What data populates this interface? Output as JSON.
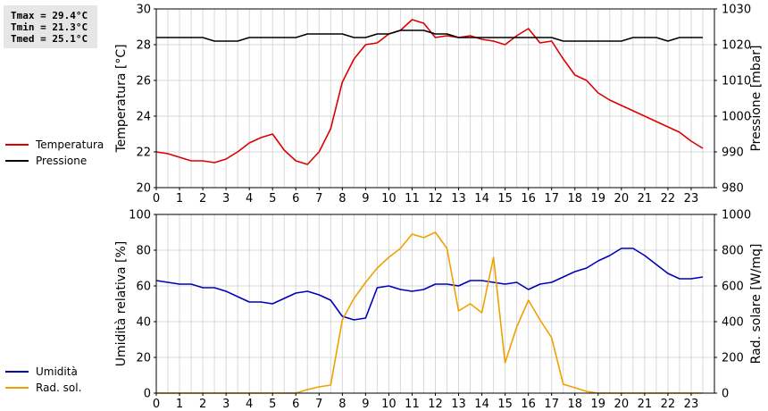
{
  "stats": {
    "tmax": "Tmax = 29.4°C",
    "tmin": "Tmin = 21.3°C",
    "tmed": "Tmed = 25.1°C"
  },
  "legend_top": [
    {
      "label": "Temperatura",
      "color": "#dd0000"
    },
    {
      "label": "Pressione",
      "color": "#000000"
    }
  ],
  "legend_bottom": [
    {
      "label": "Umidità",
      "color": "#0000bb"
    },
    {
      "label": "Rad. sol.",
      "color": "#f0a000"
    }
  ],
  "chart_data": [
    {
      "type": "line",
      "xlabel": "",
      "ylabel": "Temperatura [°C]",
      "y2label": "Pressione [mbar]",
      "xlim": [
        0,
        24
      ],
      "ylim": [
        20,
        30
      ],
      "y2lim": [
        980,
        1030
      ],
      "xticks": [
        0,
        1,
        2,
        3,
        4,
        5,
        6,
        7,
        8,
        9,
        10,
        11,
        12,
        13,
        14,
        15,
        16,
        17,
        18,
        19,
        20,
        21,
        22,
        23
      ],
      "yticks": [
        20,
        22,
        24,
        26,
        28,
        30
      ],
      "y2ticks": [
        980,
        990,
        1000,
        1010,
        1020,
        1030
      ],
      "grid": true,
      "series": [
        {
          "name": "Temperatura",
          "axis": "left",
          "color": "#dd0000",
          "x": [
            0,
            0.5,
            1,
            1.5,
            2,
            2.5,
            3,
            3.5,
            4,
            4.5,
            5,
            5.5,
            6,
            6.5,
            7,
            7.5,
            8,
            8.5,
            9,
            9.5,
            10,
            10.5,
            11,
            11.5,
            12,
            12.5,
            13,
            13.5,
            14,
            14.5,
            15,
            15.5,
            16,
            16.5,
            17,
            17.5,
            18,
            18.5,
            19,
            19.5,
            20,
            20.5,
            21,
            21.5,
            22,
            22.5,
            23,
            23.5
          ],
          "values": [
            22.0,
            21.9,
            21.7,
            21.5,
            21.5,
            21.4,
            21.6,
            22.0,
            22.5,
            22.8,
            23.0,
            22.1,
            21.5,
            21.3,
            22.0,
            23.3,
            25.9,
            27.2,
            28.0,
            28.1,
            28.6,
            28.8,
            29.4,
            29.2,
            28.4,
            28.5,
            28.4,
            28.5,
            28.3,
            28.2,
            28.0,
            28.5,
            28.9,
            28.1,
            28.2,
            27.2,
            26.3,
            26.0,
            25.3,
            24.9,
            24.6,
            24.3,
            24.0,
            23.7,
            23.4,
            23.1,
            22.6,
            22.2
          ]
        },
        {
          "name": "Pressione",
          "axis": "right",
          "color": "#000000",
          "x": [
            0,
            0.5,
            1,
            1.5,
            2,
            2.5,
            3,
            3.5,
            4,
            4.5,
            5,
            5.5,
            6,
            6.5,
            7,
            7.5,
            8,
            8.5,
            9,
            9.5,
            10,
            10.5,
            11,
            11.5,
            12,
            12.5,
            13,
            13.5,
            14,
            14.5,
            15,
            15.5,
            16,
            16.5,
            17,
            17.5,
            18,
            18.5,
            19,
            19.5,
            20,
            20.5,
            21,
            21.5,
            22,
            22.5,
            23,
            23.5
          ],
          "values": [
            1022,
            1022,
            1022,
            1022,
            1022,
            1021,
            1021,
            1021,
            1022,
            1022,
            1022,
            1022,
            1022,
            1023,
            1023,
            1023,
            1023,
            1022,
            1022,
            1023,
            1023,
            1024,
            1024,
            1024,
            1023,
            1023,
            1022,
            1022,
            1022,
            1022,
            1022,
            1022,
            1022,
            1022,
            1022,
            1021,
            1021,
            1021,
            1021,
            1021,
            1021,
            1022,
            1022,
            1022,
            1021,
            1022,
            1022,
            1022
          ]
        }
      ]
    },
    {
      "type": "line",
      "xlabel": "",
      "ylabel": "Umidità relativa [%]",
      "y2label": "Rad. solare [W/mq]",
      "xlim": [
        0,
        24
      ],
      "ylim": [
        0,
        100
      ],
      "y2lim": [
        0,
        1000
      ],
      "xticks": [
        0,
        1,
        2,
        3,
        4,
        5,
        6,
        7,
        8,
        9,
        10,
        11,
        12,
        13,
        14,
        15,
        16,
        17,
        18,
        19,
        20,
        21,
        22,
        23
      ],
      "yticks": [
        0,
        20,
        40,
        60,
        80,
        100
      ],
      "y2ticks": [
        0,
        200,
        400,
        600,
        800,
        1000
      ],
      "grid": true,
      "series": [
        {
          "name": "Umidità",
          "axis": "left",
          "color": "#0000bb",
          "x": [
            0,
            0.5,
            1,
            1.5,
            2,
            2.5,
            3,
            3.5,
            4,
            4.5,
            5,
            5.5,
            6,
            6.5,
            7,
            7.5,
            8,
            8.5,
            9,
            9.5,
            10,
            10.5,
            11,
            11.5,
            12,
            12.5,
            13,
            13.5,
            14,
            14.5,
            15,
            15.5,
            16,
            16.5,
            17,
            17.5,
            18,
            18.5,
            19,
            19.5,
            20,
            20.5,
            21,
            21.5,
            22,
            22.5,
            23,
            23.5
          ],
          "values": [
            63,
            62,
            61,
            61,
            59,
            59,
            57,
            54,
            51,
            51,
            50,
            53,
            56,
            57,
            55,
            52,
            43,
            41,
            42,
            59,
            60,
            58,
            57,
            58,
            61,
            61,
            60,
            63,
            63,
            62,
            61,
            62,
            58,
            61,
            62,
            65,
            68,
            70,
            74,
            77,
            81,
            81,
            77,
            72,
            67,
            64,
            64,
            65
          ]
        },
        {
          "name": "Rad. sol.",
          "axis": "right",
          "color": "#f0a000",
          "x": [
            0,
            0.5,
            1,
            1.5,
            2,
            2.5,
            3,
            3.5,
            4,
            4.5,
            5,
            5.5,
            6,
            6.5,
            7,
            7.5,
            8,
            8.5,
            9,
            9.5,
            10,
            10.5,
            11,
            11.5,
            12,
            12.5,
            13,
            13.5,
            14,
            14.5,
            15,
            15.5,
            16,
            16.5,
            17,
            17.5,
            18,
            18.5,
            19,
            19.5,
            20,
            20.5,
            21,
            21.5,
            22,
            22.5,
            23,
            23.5
          ],
          "values": [
            0,
            0,
            0,
            0,
            0,
            0,
            0,
            0,
            0,
            0,
            0,
            0,
            0,
            20,
            35,
            45,
            410,
            530,
            620,
            700,
            760,
            810,
            890,
            870,
            900,
            810,
            460,
            500,
            450,
            760,
            170,
            370,
            520,
            410,
            310,
            50,
            30,
            10,
            0,
            0,
            0,
            0,
            0,
            0,
            0,
            0,
            0,
            0
          ]
        }
      ]
    }
  ]
}
